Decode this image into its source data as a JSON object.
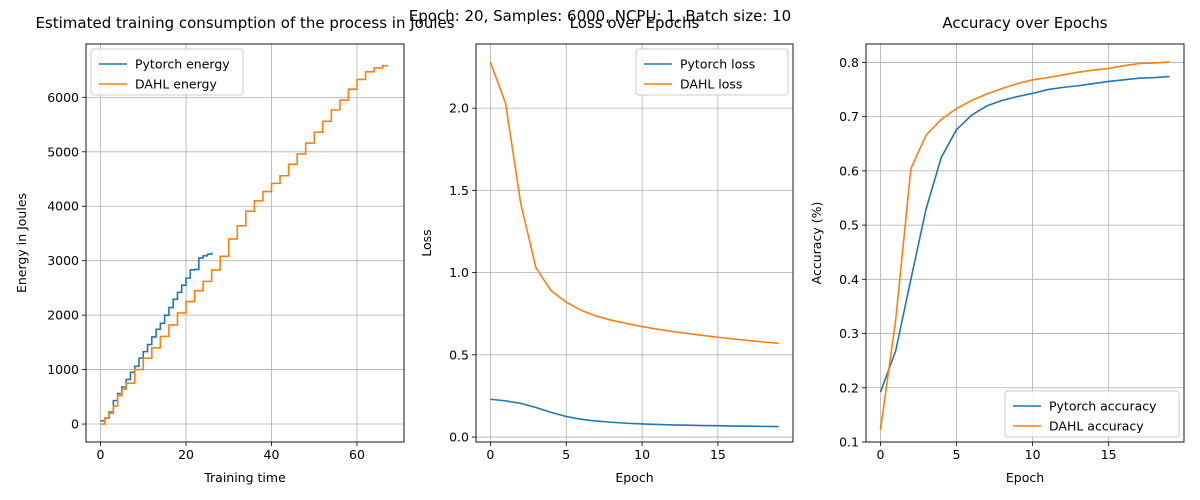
{
  "suptitle": "Epoch: 20, Samples: 6000, NCPU: 1, Batch size: 10",
  "colors": {
    "blue": "#1f77b4",
    "orange": "#ff7f0e",
    "grid": "#b0b0b0"
  },
  "chart_data": [
    {
      "type": "line",
      "title": "Estimated training consumption of the process in Joules",
      "xlabel": "Training time",
      "ylabel": "Energy in Joules",
      "xlim": [
        -3.4,
        71
      ],
      "ylim": [
        -330,
        6980
      ],
      "xticks": [
        0,
        20,
        40,
        60
      ],
      "yticks": [
        0,
        1000,
        2000,
        3000,
        4000,
        5000,
        6000
      ],
      "grid": true,
      "legend": "upper left",
      "steps": true,
      "series": [
        {
          "name": "Pytorch energy",
          "color": "#1f77b4",
          "x": [
            0,
            1,
            2,
            3,
            4,
            5,
            6,
            7,
            8,
            9,
            10,
            11,
            12,
            13,
            14,
            15,
            16,
            17,
            18,
            19,
            20,
            21,
            22,
            23,
            24,
            25,
            26
          ],
          "y": [
            60,
            110,
            220,
            430,
            560,
            680,
            820,
            950,
            1060,
            1210,
            1330,
            1460,
            1600,
            1740,
            1850,
            2000,
            2140,
            2290,
            2420,
            2550,
            2680,
            2830,
            2840,
            3050,
            3090,
            3120,
            3150
          ]
        },
        {
          "name": "DAHL energy",
          "color": "#ff7f0e",
          "x": [
            0,
            1,
            2,
            3,
            4,
            5,
            6,
            8,
            10,
            12,
            14,
            16,
            18,
            20,
            22,
            24,
            26,
            28,
            30,
            32,
            34,
            36,
            38,
            40,
            42,
            44,
            46,
            48,
            50,
            52,
            54,
            56,
            58,
            60,
            62,
            64,
            66,
            67
          ],
          "y": [
            0,
            110,
            200,
            330,
            520,
            640,
            750,
            1000,
            1210,
            1400,
            1610,
            1820,
            2040,
            2250,
            2450,
            2620,
            2830,
            3080,
            3400,
            3640,
            3910,
            4100,
            4270,
            4420,
            4560,
            4770,
            4960,
            5160,
            5360,
            5560,
            5770,
            5950,
            6150,
            6330,
            6470,
            6540,
            6580,
            6600
          ]
        }
      ]
    },
    {
      "type": "line",
      "title": "Loss over Epochs",
      "xlabel": "Epoch",
      "ylabel": "Loss",
      "xlim": [
        -0.95,
        19.95
      ],
      "ylim": [
        -0.03,
        2.39
      ],
      "xticks": [
        0,
        5,
        10,
        15
      ],
      "yticks": [
        0.0,
        0.5,
        1.0,
        1.5,
        2.0
      ],
      "grid": true,
      "legend": "upper right",
      "series": [
        {
          "name": "Pytorch loss",
          "color": "#1f77b4",
          "x": [
            0,
            1,
            2,
            3,
            4,
            5,
            6,
            7,
            8,
            9,
            10,
            11,
            12,
            13,
            14,
            15,
            16,
            17,
            18,
            19
          ],
          "y": [
            0.23,
            0.22,
            0.205,
            0.18,
            0.15,
            0.125,
            0.108,
            0.097,
            0.09,
            0.084,
            0.08,
            0.077,
            0.074,
            0.072,
            0.07,
            0.069,
            0.067,
            0.066,
            0.065,
            0.064
          ]
        },
        {
          "name": "DAHL loss",
          "color": "#ff7f0e",
          "x": [
            0,
            1,
            2,
            3,
            4,
            5,
            6,
            7,
            8,
            9,
            10,
            11,
            12,
            13,
            14,
            15,
            16,
            17,
            18,
            19
          ],
          "y": [
            2.28,
            2.03,
            1.42,
            1.03,
            0.89,
            0.82,
            0.77,
            0.735,
            0.71,
            0.69,
            0.672,
            0.656,
            0.642,
            0.63,
            0.618,
            0.607,
            0.597,
            0.587,
            0.578,
            0.57
          ]
        }
      ]
    },
    {
      "type": "line",
      "title": "Accuracy over Epochs",
      "xlabel": "Epoch",
      "ylabel": "Accuracy (%)",
      "xlim": [
        -0.95,
        19.95
      ],
      "ylim": [
        0.1,
        0.834
      ],
      "xticks": [
        0,
        5,
        10,
        15
      ],
      "yticks": [
        0.1,
        0.2,
        0.3,
        0.4,
        0.5,
        0.6,
        0.7,
        0.8
      ],
      "grid": true,
      "legend": "lower right",
      "series": [
        {
          "name": "Pytorch accuracy",
          "color": "#1f77b4",
          "x": [
            0,
            1,
            2,
            3,
            4,
            5,
            6,
            7,
            8,
            9,
            10,
            11,
            12,
            13,
            14,
            15,
            16,
            17,
            18,
            19
          ],
          "y": [
            0.192,
            0.268,
            0.4,
            0.53,
            0.625,
            0.676,
            0.703,
            0.72,
            0.73,
            0.737,
            0.743,
            0.75,
            0.754,
            0.757,
            0.761,
            0.765,
            0.768,
            0.771,
            0.772,
            0.774
          ]
        },
        {
          "name": "DAHL accuracy",
          "color": "#ff7f0e",
          "x": [
            0,
            1,
            2,
            3,
            4,
            5,
            6,
            7,
            8,
            9,
            10,
            11,
            12,
            13,
            14,
            15,
            16,
            17,
            18,
            19
          ],
          "y": [
            0.122,
            0.325,
            0.604,
            0.666,
            0.695,
            0.715,
            0.73,
            0.742,
            0.752,
            0.761,
            0.768,
            0.772,
            0.777,
            0.782,
            0.786,
            0.789,
            0.794,
            0.798,
            0.799,
            0.801
          ]
        }
      ]
    }
  ]
}
